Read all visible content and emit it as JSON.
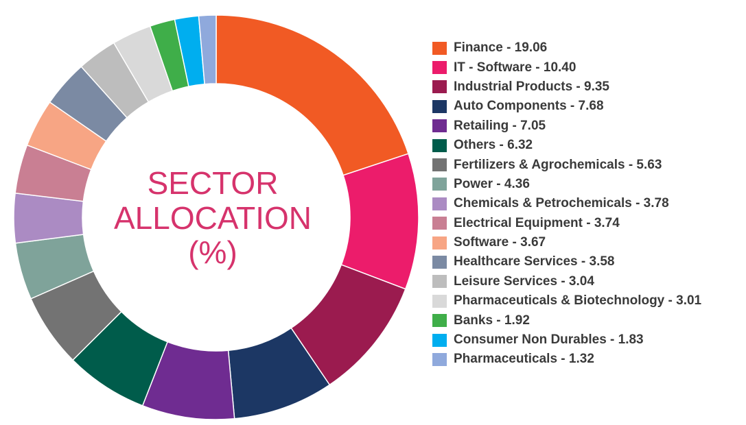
{
  "center": {
    "line1": "SECTOR",
    "line2": "ALLOCATION",
    "line3": "(%)"
  },
  "chart_data": {
    "type": "pie",
    "donut": true,
    "title": "SECTOR ALLOCATION (%)",
    "legend_position": "right",
    "categories": [
      "Finance - 19.06",
      "IT - Software - 10.40",
      "Industrial Products - 9.35",
      "Auto Components - 7.68",
      "Retailing - 7.05",
      "Others - 6.32",
      "Fertilizers & Agrochemicals - 5.63",
      "Power - 4.36",
      "Chemicals & Petrochemicals - 3.78",
      "Electrical Equipment - 3.74",
      "Software - 3.67",
      "Healthcare Services - 3.58",
      "Leisure Services - 3.04",
      "Pharmaceuticals & Biotechnology - 3.01",
      "Banks - 1.92",
      "Consumer Non Durables - 1.83",
      "Pharmaceuticals - 1.32"
    ],
    "values": [
      19.06,
      10.4,
      9.35,
      7.68,
      7.05,
      6.32,
      5.63,
      4.36,
      3.78,
      3.74,
      3.67,
      3.58,
      3.04,
      3.01,
      1.92,
      1.83,
      1.32
    ],
    "colors": [
      "#f15a24",
      "#ec1c6b",
      "#9b1b4f",
      "#1c3764",
      "#6f2c91",
      "#005c4b",
      "#737373",
      "#7fa39a",
      "#ab8bc3",
      "#c97f93",
      "#f7a584",
      "#7b8aa3",
      "#bdbdbd",
      "#d9d9d9",
      "#3fae49",
      "#00aeef",
      "#8fa9dc"
    ]
  }
}
